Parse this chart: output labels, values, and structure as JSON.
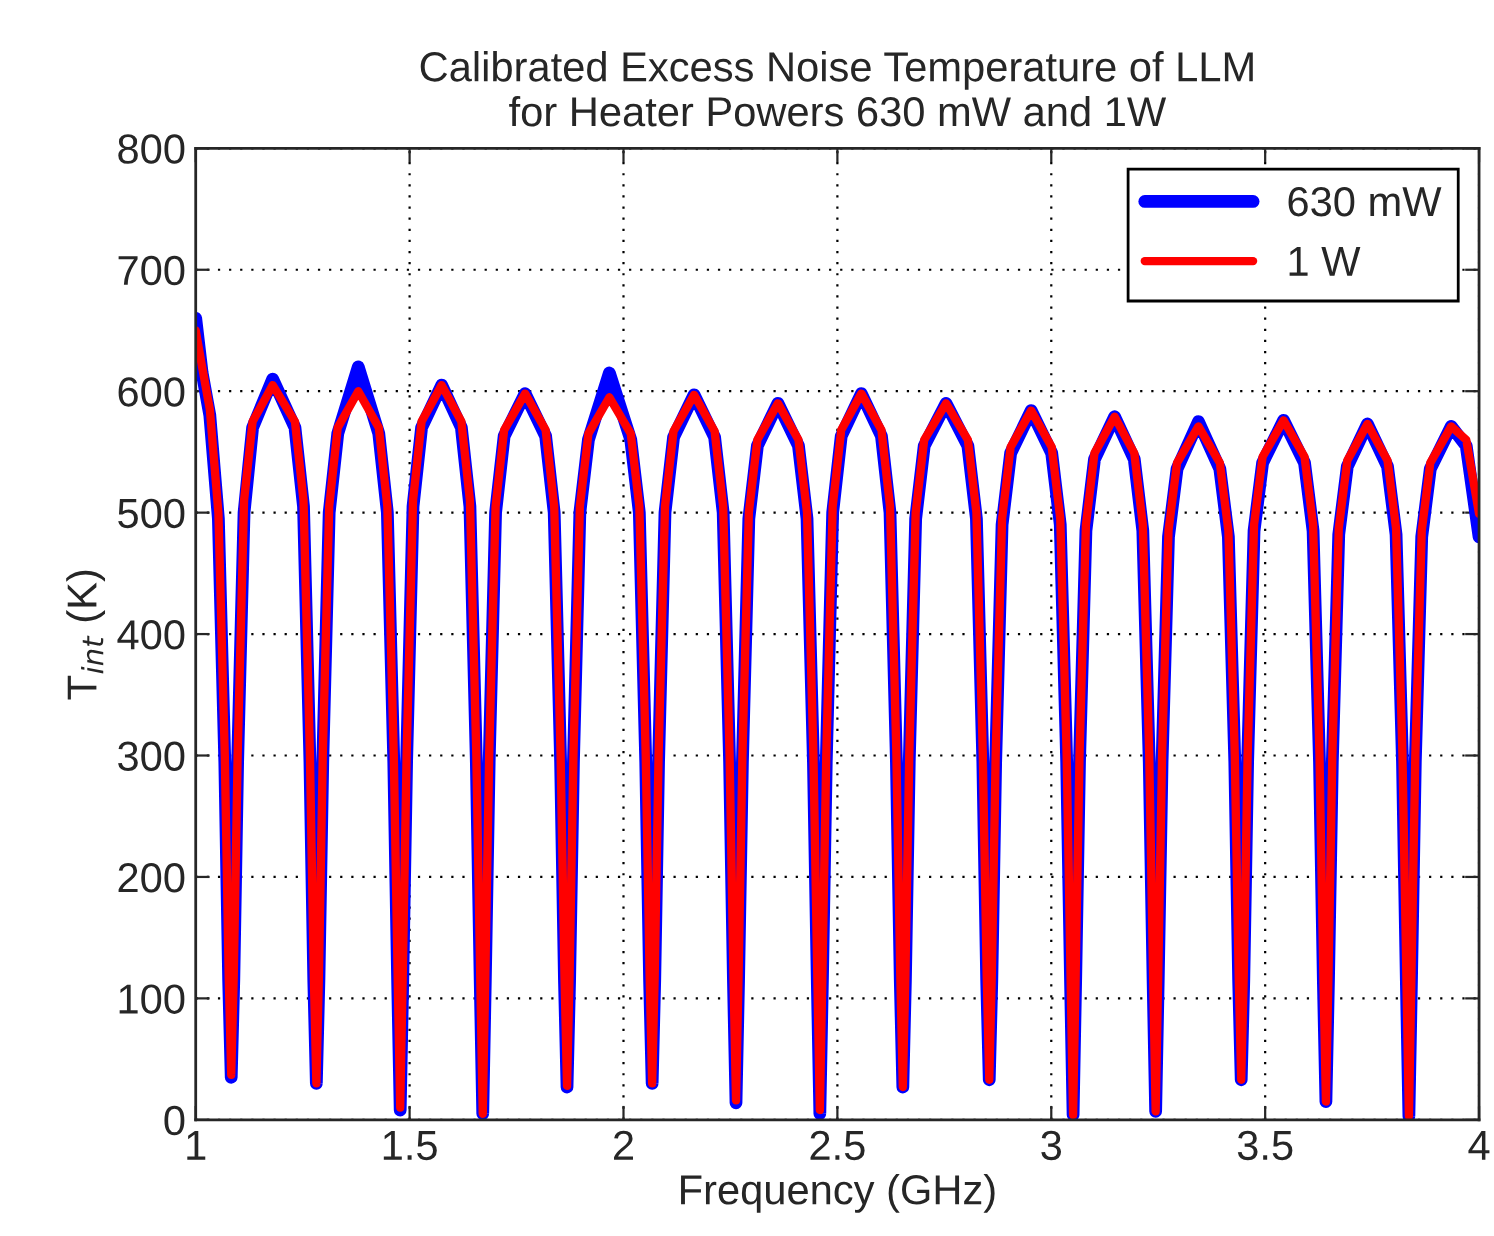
{
  "chart_data": {
    "type": "line",
    "title": "Calibrated Excess Noise Temperature of LLM\nfor Heater Powers 630 mW and 1W",
    "xlabel": "Frequency (GHz)",
    "ylabel": "T$_{int}$ (K)",
    "x": [
      1.0,
      1.015,
      1.033,
      1.053,
      1.068,
      1.077,
      1.083,
      1.089,
      1.098,
      1.113,
      1.133,
      1.18,
      1.232,
      1.252,
      1.267,
      1.276,
      1.282,
      1.288,
      1.297,
      1.312,
      1.332,
      1.38,
      1.428,
      1.448,
      1.463,
      1.472,
      1.478,
      1.484,
      1.493,
      1.508,
      1.528,
      1.575,
      1.621,
      1.641,
      1.656,
      1.665,
      1.671,
      1.677,
      1.686,
      1.701,
      1.721,
      1.77,
      1.818,
      1.838,
      1.853,
      1.862,
      1.868,
      1.874,
      1.883,
      1.898,
      1.918,
      1.967,
      2.017,
      2.037,
      2.052,
      2.061,
      2.067,
      2.073,
      2.082,
      2.097,
      2.117,
      2.165,
      2.213,
      2.233,
      2.248,
      2.257,
      2.263,
      2.269,
      2.278,
      2.293,
      2.313,
      2.361,
      2.409,
      2.429,
      2.444,
      2.453,
      2.459,
      2.465,
      2.474,
      2.489,
      2.509,
      2.556,
      2.603,
      2.623,
      2.638,
      2.647,
      2.653,
      2.659,
      2.668,
      2.683,
      2.703,
      2.754,
      2.805,
      2.825,
      2.84,
      2.849,
      2.855,
      2.861,
      2.87,
      2.885,
      2.905,
      2.953,
      3.001,
      3.021,
      3.036,
      3.045,
      3.051,
      3.057,
      3.066,
      3.081,
      3.101,
      3.148,
      3.194,
      3.214,
      3.229,
      3.238,
      3.244,
      3.25,
      3.259,
      3.274,
      3.294,
      3.344,
      3.394,
      3.414,
      3.429,
      3.438,
      3.444,
      3.45,
      3.459,
      3.474,
      3.494,
      3.543,
      3.592,
      3.612,
      3.627,
      3.636,
      3.642,
      3.648,
      3.657,
      3.672,
      3.692,
      3.739,
      3.786,
      3.806,
      3.821,
      3.83,
      3.836,
      3.842,
      3.851,
      3.866,
      3.886,
      3.935,
      3.97,
      4.0
    ],
    "series": [
      {
        "name": "630 mW",
        "color": "#0000ff",
        "values": [
          660,
          615,
          580,
          495,
          295,
          115,
          35,
          115,
          295,
          500,
          570,
          610,
          570,
          505,
          295,
          115,
          30,
          115,
          295,
          500,
          565,
          620,
          565,
          500,
          295,
          115,
          8,
          115,
          295,
          505,
          570,
          605,
          570,
          505,
          295,
          115,
          5,
          115,
          295,
          500,
          563,
          598,
          563,
          500,
          295,
          115,
          27,
          115,
          295,
          500,
          560,
          615,
          560,
          500,
          295,
          115,
          30,
          115,
          295,
          500,
          562,
          597,
          562,
          500,
          295,
          115,
          14,
          115,
          295,
          495,
          555,
          590,
          555,
          495,
          295,
          115,
          5,
          115,
          295,
          500,
          563,
          598,
          563,
          500,
          295,
          115,
          27,
          115,
          295,
          495,
          555,
          590,
          555,
          495,
          295,
          115,
          33,
          115,
          295,
          490,
          549,
          584,
          549,
          490,
          295,
          115,
          4,
          115,
          295,
          485,
          544,
          579,
          544,
          485,
          295,
          115,
          7,
          115,
          295,
          480,
          536,
          575,
          536,
          480,
          295,
          115,
          33,
          115,
          295,
          485,
          541,
          576,
          541,
          485,
          295,
          115,
          15,
          115,
          295,
          482,
          538,
          573,
          538,
          482,
          295,
          115,
          3,
          115,
          295,
          480,
          536,
          571,
          555,
          480
        ]
      },
      {
        "name": "1 W",
        "color": "#ff0000",
        "values": [
          650,
          620,
          585,
          500,
          300,
          120,
          37,
          120,
          300,
          510,
          575,
          605,
          575,
          510,
          300,
          120,
          30,
          120,
          300,
          505,
          570,
          600,
          570,
          505,
          300,
          120,
          10,
          120,
          300,
          510,
          575,
          605,
          575,
          510,
          300,
          120,
          5,
          120,
          300,
          505,
          568,
          598,
          568,
          505,
          300,
          120,
          28,
          120,
          300,
          505,
          565,
          595,
          565,
          505,
          300,
          120,
          30,
          120,
          300,
          505,
          567,
          597,
          567,
          505,
          300,
          120,
          16,
          120,
          300,
          500,
          560,
          590,
          560,
          500,
          300,
          120,
          8,
          120,
          300,
          505,
          568,
          598,
          568,
          505,
          300,
          120,
          27,
          120,
          300,
          500,
          560,
          590,
          560,
          500,
          300,
          120,
          33,
          120,
          300,
          495,
          554,
          584,
          554,
          495,
          300,
          120,
          4,
          120,
          300,
          490,
          549,
          579,
          549,
          490,
          300,
          120,
          7,
          120,
          300,
          485,
          541,
          571,
          541,
          485,
          300,
          120,
          33,
          120,
          300,
          490,
          546,
          576,
          546,
          490,
          300,
          120,
          15,
          120,
          300,
          487,
          543,
          573,
          543,
          487,
          300,
          120,
          3,
          120,
          300,
          485,
          541,
          571,
          560,
          499
        ]
      }
    ],
    "xlim": [
      1,
      4
    ],
    "ylim": [
      0,
      800
    ],
    "xticks": [
      1,
      1.5,
      2,
      2.5,
      3,
      3.5,
      4
    ],
    "yticks": [
      0,
      100,
      200,
      300,
      400,
      500,
      600,
      700,
      800
    ],
    "grid": true,
    "legend": "top right",
    "line_style": "solid",
    "marker": "none"
  }
}
